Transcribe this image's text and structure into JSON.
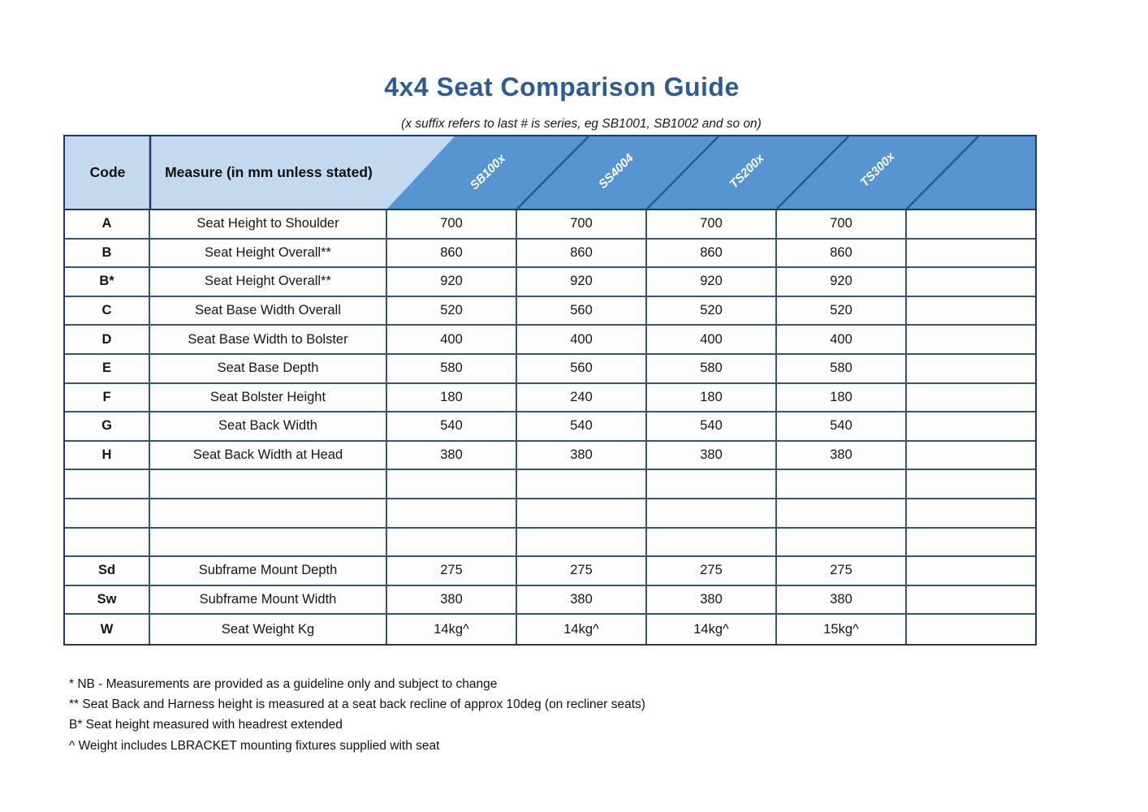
{
  "title": "4x4 Seat Comparison Guide",
  "subtitle": "(x suffix refers to last # is series, eg SB1001, SB1002 and so on)",
  "table": {
    "code_header": "Code",
    "measure_header": "Measure (in mm unless stated)",
    "product_columns": [
      "SB100x",
      "SS4004",
      "TS200x",
      "TS300x",
      ""
    ],
    "rows": [
      {
        "code": "A",
        "measure": "Seat Height to Shoulder",
        "values": [
          "700",
          "700",
          "700",
          "700",
          ""
        ]
      },
      {
        "code": "B",
        "measure": "Seat Height Overall**",
        "values": [
          "860",
          "860",
          "860",
          "860",
          ""
        ]
      },
      {
        "code": "B*",
        "measure": "Seat Height Overall**",
        "values": [
          "920",
          "920",
          "920",
          "920",
          ""
        ]
      },
      {
        "code": "C",
        "measure": "Seat Base Width Overall",
        "values": [
          "520",
          "560",
          "520",
          "520",
          ""
        ]
      },
      {
        "code": "D",
        "measure": "Seat Base Width to Bolster",
        "values": [
          "400",
          "400",
          "400",
          "400",
          ""
        ]
      },
      {
        "code": "E",
        "measure": "Seat Base Depth",
        "values": [
          "580",
          "560",
          "580",
          "580",
          ""
        ]
      },
      {
        "code": "F",
        "measure": "Seat Bolster Height",
        "values": [
          "180",
          "240",
          "180",
          "180",
          ""
        ]
      },
      {
        "code": "G",
        "measure": "Seat Back Width",
        "values": [
          "540",
          "540",
          "540",
          "540",
          ""
        ]
      },
      {
        "code": "H",
        "measure": "Seat Back Width at Head",
        "values": [
          "380",
          "380",
          "380",
          "380",
          ""
        ]
      },
      {
        "code": "",
        "measure": "",
        "values": [
          "",
          "",
          "",
          "",
          ""
        ]
      },
      {
        "code": "",
        "measure": "",
        "values": [
          "",
          "",
          "",
          "",
          ""
        ]
      },
      {
        "code": "",
        "measure": "",
        "values": [
          "",
          "",
          "",
          "",
          ""
        ]
      },
      {
        "code": "Sd",
        "measure": "Subframe Mount Depth",
        "values": [
          "275",
          "275",
          "275",
          "275",
          ""
        ]
      },
      {
        "code": "Sw",
        "measure": "Subframe Mount Width",
        "values": [
          "380",
          "380",
          "380",
          "380",
          ""
        ]
      },
      {
        "code": "W",
        "measure": "Seat Weight Kg",
        "values": [
          "14kg^",
          "14kg^",
          "14kg^",
          "15kg^",
          ""
        ]
      }
    ]
  },
  "footnotes": [
    "* NB - Measurements are provided as a guideline only and subject to change",
    "** Seat Back and Harness height is measured at a seat back recline of approx 10deg (on recliner seats)",
    "B* Seat height measured with headrest extended",
    "^ Weight includes LBRACKET mounting fixtures supplied with seat"
  ],
  "colors": {
    "title_blue": "#2e5b96",
    "header_fill_blue": "#5795d1",
    "header_light_blue": "#c2d9ef",
    "header_diagonal_line": "#24599c",
    "outer_border_navy": "#1f3864",
    "grid_border": "#335577",
    "body_text": "#161616"
  }
}
